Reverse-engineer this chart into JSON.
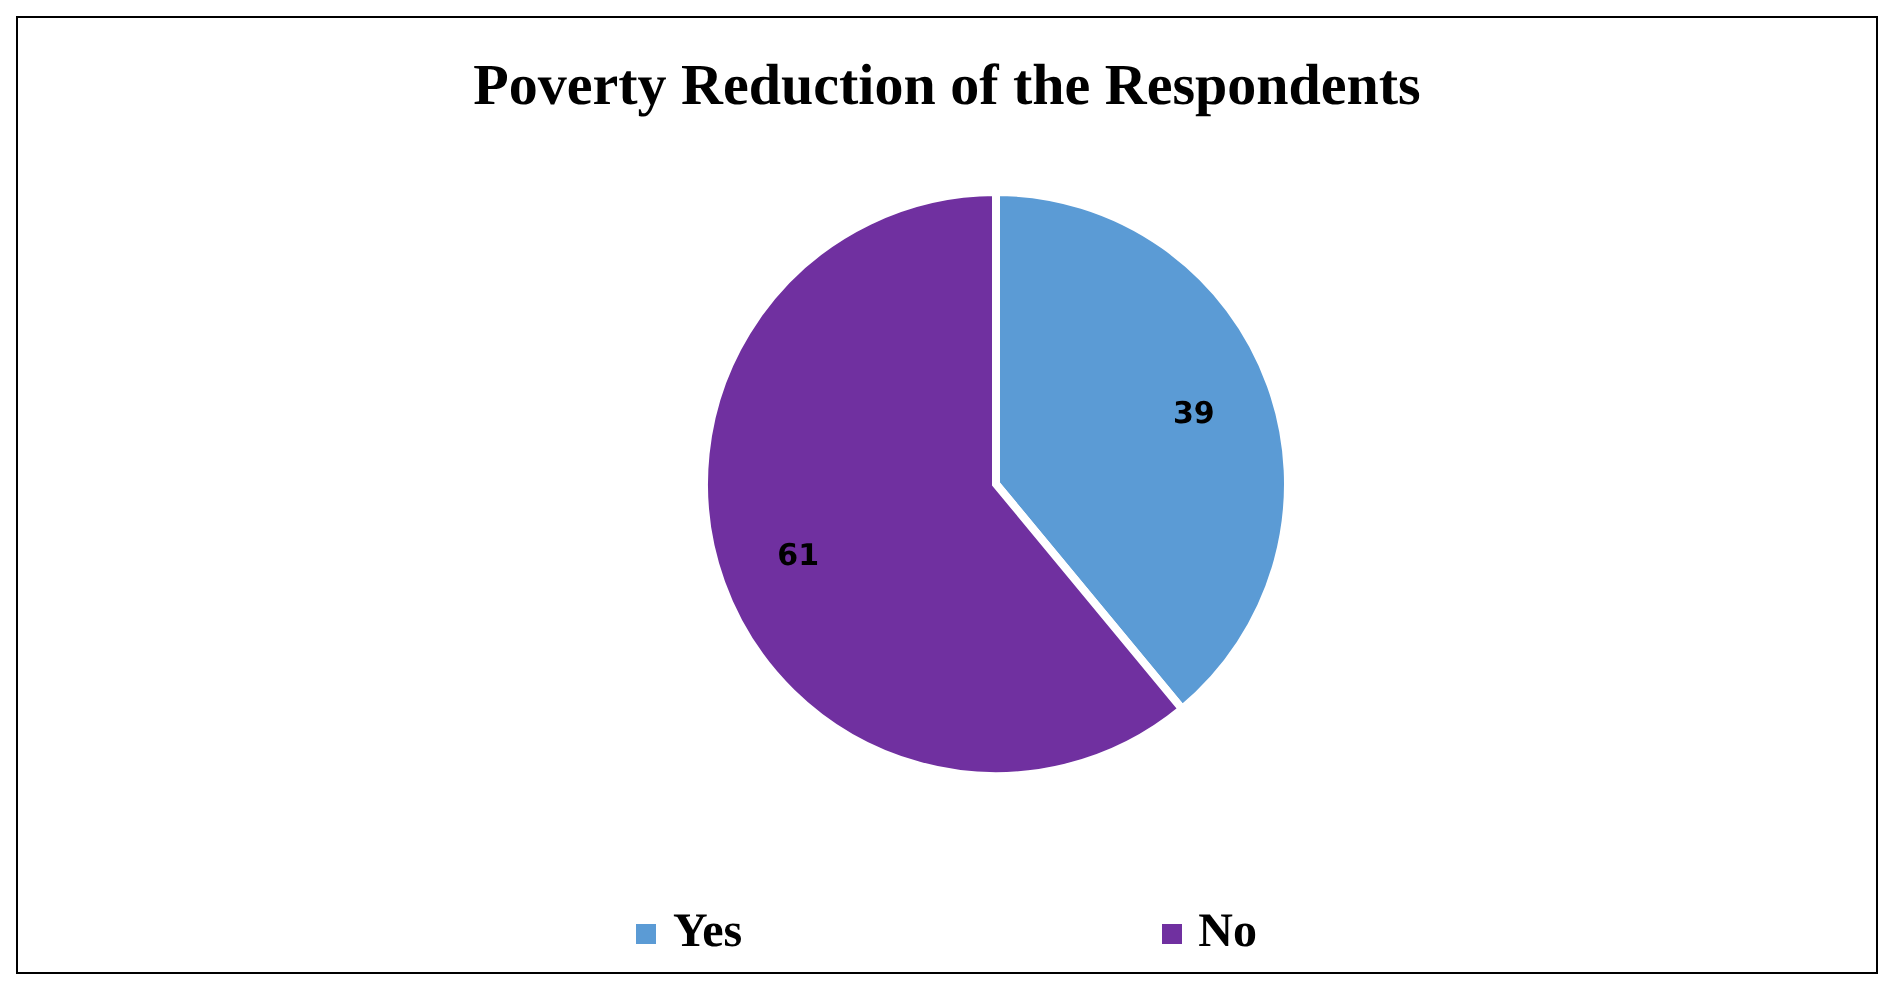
{
  "chart_data": {
    "type": "pie",
    "title": "Poverty Reduction of the Respondents",
    "categories": [
      "Yes",
      "No"
    ],
    "values": [
      39,
      61
    ],
    "colors": [
      "#5b9bd5",
      "#7030a0"
    ],
    "data_labels": true,
    "legend": "bottom"
  }
}
